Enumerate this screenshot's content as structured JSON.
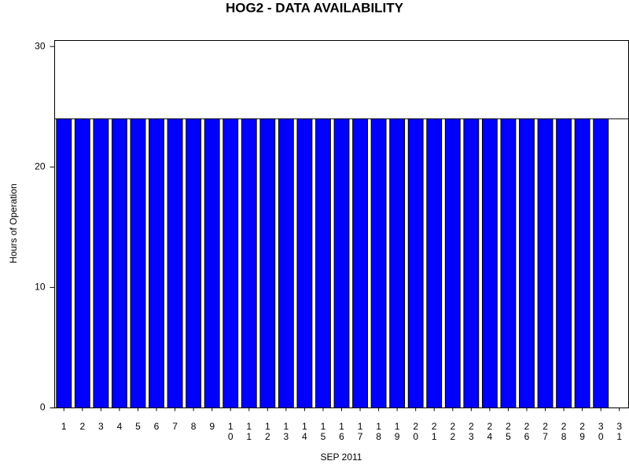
{
  "chart_data": {
    "type": "bar",
    "title": "HOG2 - DATA AVAILABILITY",
    "x_label": "SEP 2011",
    "y_label": "Hours of Operation",
    "categories": [
      "1",
      "2",
      "3",
      "4",
      "5",
      "6",
      "7",
      "8",
      "9",
      "10",
      "11",
      "12",
      "13",
      "14",
      "15",
      "16",
      "17",
      "18",
      "19",
      "20",
      "21",
      "22",
      "23",
      "24",
      "25",
      "26",
      "27",
      "28",
      "29",
      "30",
      "31"
    ],
    "values": [
      24,
      24,
      24,
      24,
      24,
      24,
      24,
      24,
      24,
      24,
      24,
      24,
      24,
      24,
      24,
      24,
      24,
      24,
      24,
      24,
      24,
      24,
      24,
      24,
      24,
      24,
      24,
      24,
      24,
      24,
      null
    ],
    "color": "#0000ff",
    "reference_line": 24,
    "ylim": [
      0,
      30.5
    ],
    "yticks": [
      0,
      10,
      20,
      30
    ],
    "grid": false
  }
}
